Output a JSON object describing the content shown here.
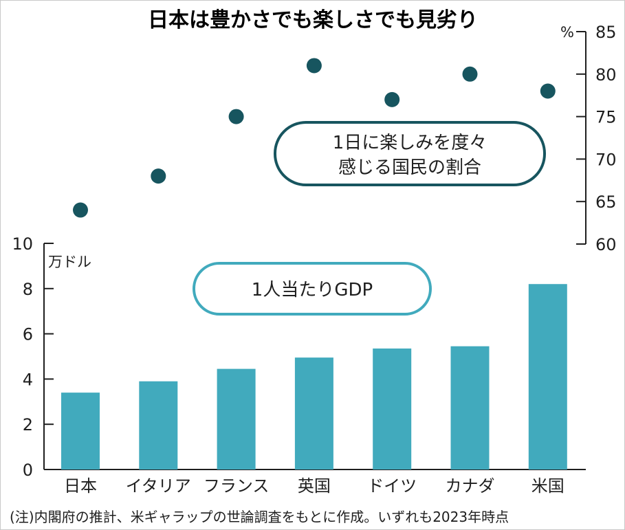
{
  "chart_data": {
    "title": "日本は豊かさでも楽しさでも見劣り",
    "categories": [
      "日本",
      "イタリア",
      "フランス",
      "英国",
      "ドイツ",
      "カナダ",
      "米国"
    ],
    "series": [
      {
        "name": "1日に楽しみを度々感じる国民の割合",
        "name_lines": [
          "1日に楽しみを度々",
          "感じる国民の割合"
        ],
        "type": "scatter",
        "axis": "right",
        "unit": "%",
        "values": [
          64,
          68,
          75,
          81,
          77,
          80,
          78
        ],
        "color": "#17555f"
      },
      {
        "name": "1人当たりGDP",
        "type": "bar",
        "axis": "left",
        "unit": "万ドル",
        "values": [
          3.4,
          3.9,
          4.45,
          4.95,
          5.35,
          5.45,
          8.2
        ],
        "color": "#41aabd"
      }
    ],
    "left_axis": {
      "unit": "万ドル",
      "ylim": [
        0,
        10
      ],
      "ticks": [
        0,
        2,
        4,
        6,
        8,
        10
      ]
    },
    "right_axis": {
      "unit": "%",
      "ylim": [
        60,
        85
      ],
      "ticks": [
        60,
        65,
        70,
        75,
        80,
        85
      ]
    },
    "note": "(注)内閣府の推計、米ギャラップの世論調査をもとに作成。いずれも2023年時点"
  }
}
